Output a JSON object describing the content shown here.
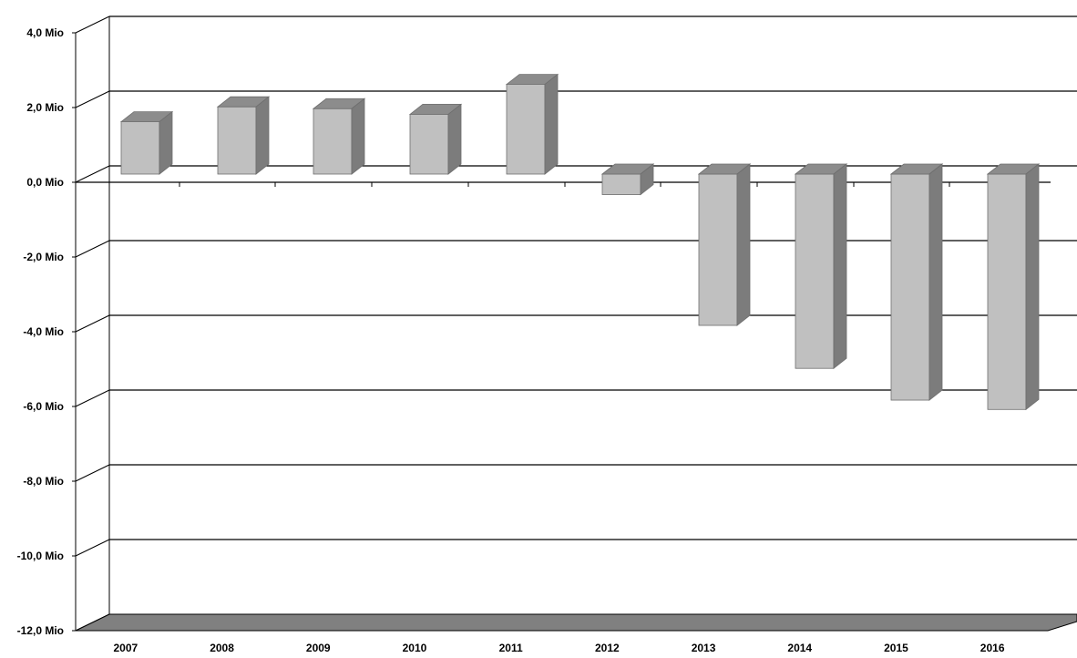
{
  "chart_data": {
    "type": "bar",
    "categories": [
      "2007",
      "2008",
      "2009",
      "2010",
      "2011",
      "2012",
      "2013",
      "2014",
      "2015",
      "2016"
    ],
    "values": [
      1.4,
      1.8,
      1.75,
      1.6,
      2.4,
      -0.55,
      -4.05,
      -5.2,
      -6.05,
      -6.3
    ],
    "ylim": [
      -12,
      4
    ],
    "yticks": [
      4,
      2,
      0,
      -2,
      -4,
      -6,
      -8,
      -10,
      -12
    ],
    "ytick_labels": [
      "4,0 Mio",
      "2,0 Mio",
      "0,0 Mio",
      "-2,0 Mio",
      "-4,0 Mio",
      "-6,0 Mio",
      "-8,0 Mio",
      "-10,0 Mio",
      "-12,0 Mio"
    ],
    "grid": true,
    "legend": "none",
    "style": "3d-column",
    "colors": {
      "bar_front": "#c0c0c0",
      "bar_top": "#8c8c8c",
      "bar_side": "#7c7c7c",
      "floor": "#808080",
      "gridline": "#000000"
    }
  }
}
